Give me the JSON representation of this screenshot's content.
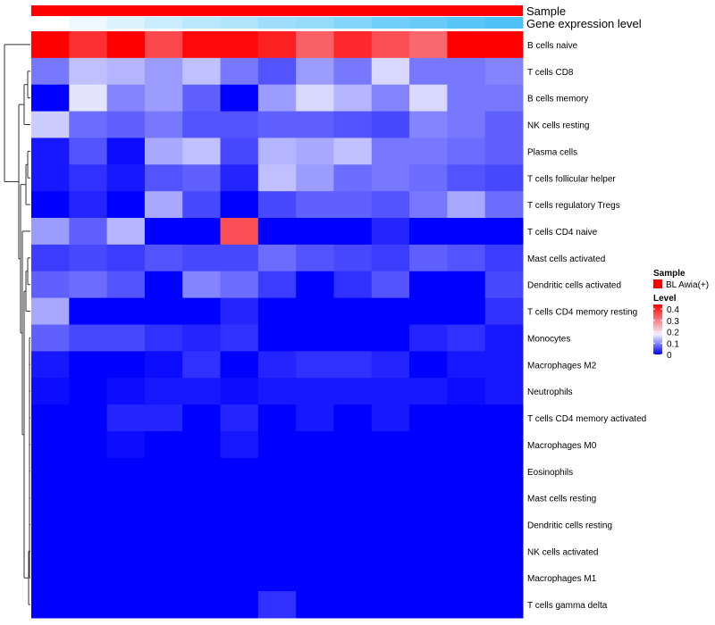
{
  "chart_data": {
    "type": "heatmap",
    "annotations": [
      {
        "name": "Sample",
        "label": "Sample"
      },
      {
        "name": "Gene expression level",
        "label": "Gene expression level"
      }
    ],
    "gene_expression_level": [
      0.0,
      0.1,
      0.2,
      0.3,
      0.4,
      0.45,
      0.55,
      0.6,
      0.7,
      0.8,
      0.85,
      0.95,
      1.0
    ],
    "expression_colors": {
      "low": "#ffffff",
      "high": "#4fc3f7"
    },
    "rows": [
      "B cells naive",
      "T cells CD8",
      "B cells memory",
      "NK cells resting",
      "Plasma cells",
      "T cells follicular helper",
      "T cells regulatory  Tregs",
      "T cells CD4 naive",
      "Mast cells activated",
      "Dendritic cells activated",
      "T cells CD4 memory resting",
      "Monocytes",
      "Macrophages M2",
      "Neutrophils",
      "T cells CD4 memory activated",
      "Macrophages M0",
      "Eosinophils",
      "Mast cells resting",
      "Dendritic cells resting",
      "NK cells activated",
      "Macrophages M1",
      "T cells gamma delta"
    ],
    "columns": 13,
    "values": [
      [
        0.5,
        0.44,
        0.5,
        0.41,
        0.49,
        0.49,
        0.46,
        0.38,
        0.45,
        0.4,
        0.37,
        0.5,
        0.5
      ],
      [
        0.1,
        0.16,
        0.15,
        0.13,
        0.16,
        0.1,
        0.07,
        0.13,
        0.1,
        0.18,
        0.1,
        0.1,
        0.11
      ],
      [
        0.0,
        0.19,
        0.11,
        0.13,
        0.08,
        0.0,
        0.13,
        0.18,
        0.15,
        0.11,
        0.18,
        0.1,
        0.1
      ],
      [
        0.17,
        0.09,
        0.08,
        0.1,
        0.07,
        0.07,
        0.08,
        0.08,
        0.07,
        0.06,
        0.11,
        0.1,
        0.08
      ],
      [
        0.02,
        0.07,
        0.01,
        0.14,
        0.16,
        0.06,
        0.15,
        0.14,
        0.16,
        0.1,
        0.1,
        0.09,
        0.08
      ],
      [
        0.02,
        0.04,
        0.02,
        0.07,
        0.08,
        0.03,
        0.16,
        0.13,
        0.09,
        0.1,
        0.09,
        0.07,
        0.06
      ],
      [
        0.0,
        0.03,
        0.0,
        0.14,
        0.06,
        0.0,
        0.06,
        0.08,
        0.08,
        0.07,
        0.1,
        0.14,
        0.09
      ],
      [
        0.13,
        0.08,
        0.15,
        0.0,
        0.0,
        0.4,
        0.0,
        0.0,
        0.0,
        0.03,
        0.0,
        0.0,
        0.0
      ],
      [
        0.05,
        0.06,
        0.05,
        0.07,
        0.06,
        0.06,
        0.09,
        0.07,
        0.06,
        0.05,
        0.08,
        0.07,
        0.05
      ],
      [
        0.08,
        0.09,
        0.07,
        0.0,
        0.11,
        0.09,
        0.05,
        0.0,
        0.04,
        0.07,
        0.0,
        0.0,
        0.06
      ],
      [
        0.14,
        0.0,
        0.0,
        0.0,
        0.0,
        0.03,
        0.0,
        0.0,
        0.0,
        0.0,
        0.0,
        0.0,
        0.04
      ],
      [
        0.08,
        0.06,
        0.06,
        0.04,
        0.03,
        0.04,
        0.0,
        0.0,
        0.0,
        0.0,
        0.03,
        0.04,
        0.02
      ],
      [
        0.02,
        0.0,
        0.0,
        0.01,
        0.04,
        0.0,
        0.03,
        0.04,
        0.04,
        0.03,
        0.0,
        0.02,
        0.02
      ],
      [
        0.01,
        0.0,
        0.01,
        0.02,
        0.02,
        0.01,
        0.02,
        0.02,
        0.02,
        0.02,
        0.02,
        0.01,
        0.02
      ],
      [
        0.0,
        0.0,
        0.03,
        0.03,
        0.0,
        0.03,
        0.0,
        0.02,
        0.0,
        0.02,
        0.0,
        0.0,
        0.0
      ],
      [
        0.0,
        0.0,
        0.01,
        0.0,
        0.0,
        0.02,
        0.0,
        0.0,
        0.0,
        0.0,
        0.0,
        0.0,
        0.0
      ],
      [
        0.0,
        0.0,
        0.0,
        0.0,
        0.0,
        0.0,
        0.0,
        0.0,
        0.0,
        0.0,
        0.0,
        0.0,
        0.0
      ],
      [
        0.0,
        0.0,
        0.0,
        0.0,
        0.0,
        0.0,
        0.0,
        0.0,
        0.0,
        0.0,
        0.0,
        0.0,
        0.0
      ],
      [
        0.0,
        0.0,
        0.0,
        0.0,
        0.0,
        0.0,
        0.0,
        0.0,
        0.0,
        0.0,
        0.0,
        0.0,
        0.0
      ],
      [
        0.0,
        0.0,
        0.0,
        0.0,
        0.0,
        0.0,
        0.0,
        0.0,
        0.0,
        0.0,
        0.0,
        0.0,
        0.0
      ],
      [
        0.0,
        0.0,
        0.0,
        0.0,
        0.0,
        0.0,
        0.0,
        0.0,
        0.0,
        0.0,
        0.0,
        0.0,
        0.0
      ],
      [
        0.0,
        0.0,
        0.0,
        0.0,
        0.0,
        0.0,
        0.04,
        0.0,
        0.0,
        0.0,
        0.0,
        0.0,
        0.0
      ]
    ],
    "color_scale": {
      "min": 0,
      "mid": 0.2,
      "max": 0.5,
      "low_color": "#0000ff",
      "mid_color": "#f0f0ff",
      "high_color": "#ff0000"
    },
    "legend": {
      "position": "right",
      "sample_title": "Sample",
      "sample_entry": "BL Awia(+)",
      "sample_color": "#ff0000",
      "level_title": "Level",
      "level_ticks": [
        "0.4",
        "0.3",
        "0.2",
        "0.1",
        "0"
      ],
      "level_tick_values": [
        0.4,
        0.3,
        0.2,
        0.1,
        0
      ]
    },
    "row_dendrogram": true
  }
}
